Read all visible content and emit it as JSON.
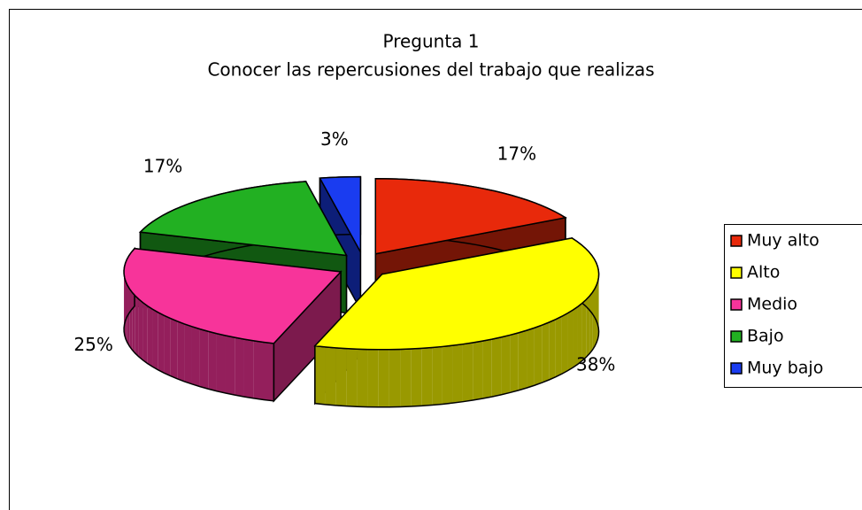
{
  "chart_data": {
    "type": "pie3d",
    "title": "Pregunta 1",
    "subtitle": "Conocer las repercusiones del trabajo que realizas",
    "categories": [
      "Muy alto",
      "Alto",
      "Medio",
      "Bajo",
      "Muy bajo"
    ],
    "values": [
      17,
      38,
      25,
      17,
      3
    ],
    "value_labels": [
      "17%",
      "38%",
      "25%",
      "17%",
      "3%"
    ],
    "colors": [
      "#e8290b",
      "#ffff00",
      "#f7349a",
      "#22b022",
      "#1a3cf0"
    ],
    "legend": "right"
  }
}
